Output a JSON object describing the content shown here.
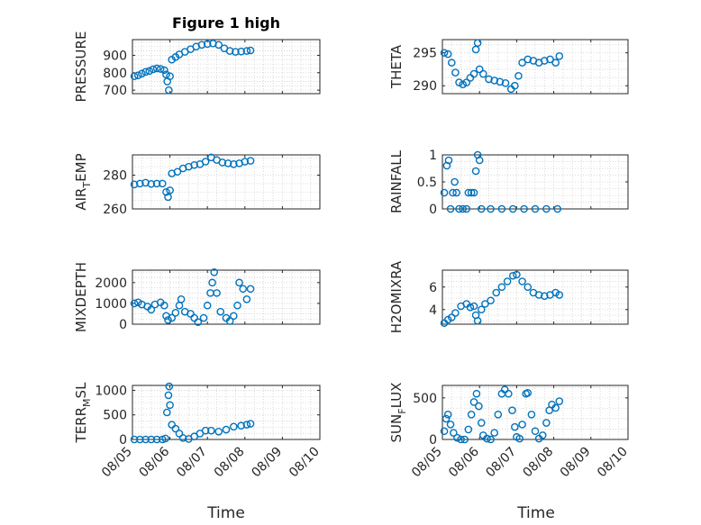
{
  "figure": {
    "title": "Figure 1 high",
    "xlabel": "Time"
  },
  "colors": {
    "marker": "#0072BD",
    "grid": "#d0d0d0",
    "axes": "#262626"
  },
  "chart_data": [
    {
      "type": "scatter",
      "name": "PRESSURE",
      "ylabel_main": "PRESSURE",
      "ylabel_sub": "",
      "xlim": [
        0,
        5
      ],
      "ylim": [
        680,
        990
      ],
      "yticks": [
        700,
        800,
        900
      ],
      "show_xticks": false,
      "title": "Figure 1 high",
      "points": [
        [
          0.05,
          780
        ],
        [
          0.15,
          785
        ],
        [
          0.25,
          795
        ],
        [
          0.35,
          805
        ],
        [
          0.45,
          810
        ],
        [
          0.55,
          820
        ],
        [
          0.65,
          825
        ],
        [
          0.75,
          822
        ],
        [
          0.85,
          815
        ],
        [
          0.9,
          790
        ],
        [
          0.93,
          750
        ],
        [
          0.97,
          700
        ],
        [
          1.0,
          780
        ],
        [
          1.05,
          875
        ],
        [
          1.15,
          890
        ],
        [
          1.25,
          905
        ],
        [
          1.4,
          920
        ],
        [
          1.55,
          935
        ],
        [
          1.7,
          950
        ],
        [
          1.85,
          960
        ],
        [
          2.0,
          965
        ],
        [
          2.15,
          968
        ],
        [
          2.3,
          960
        ],
        [
          2.45,
          940
        ],
        [
          2.6,
          925
        ],
        [
          2.75,
          920
        ],
        [
          2.9,
          922
        ],
        [
          3.05,
          925
        ],
        [
          3.15,
          928
        ]
      ]
    },
    {
      "type": "scatter",
      "name": "THETA",
      "ylabel_main": "THETA",
      "ylabel_sub": "",
      "xlim": [
        0,
        5
      ],
      "ylim": [
        288.8,
        297
      ],
      "yticks": [
        290,
        295
      ],
      "show_xticks": false,
      "points": [
        [
          0.05,
          295
        ],
        [
          0.15,
          294.8
        ],
        [
          0.25,
          293.5
        ],
        [
          0.35,
          292
        ],
        [
          0.45,
          290.5
        ],
        [
          0.55,
          290.2
        ],
        [
          0.65,
          290.5
        ],
        [
          0.75,
          291.2
        ],
        [
          0.85,
          291.8
        ],
        [
          0.9,
          295.5
        ],
        [
          0.95,
          296.5
        ],
        [
          1.0,
          292.5
        ],
        [
          1.1,
          291.8
        ],
        [
          1.25,
          291
        ],
        [
          1.4,
          290.8
        ],
        [
          1.55,
          290.6
        ],
        [
          1.7,
          290.4
        ],
        [
          1.85,
          289.5
        ],
        [
          1.95,
          290
        ],
        [
          2.05,
          291.5
        ],
        [
          2.15,
          293.5
        ],
        [
          2.3,
          294
        ],
        [
          2.45,
          293.8
        ],
        [
          2.6,
          293.5
        ],
        [
          2.75,
          293.8
        ],
        [
          2.9,
          294
        ],
        [
          3.05,
          293.5
        ],
        [
          3.15,
          294.5
        ]
      ]
    },
    {
      "type": "scatter",
      "name": "AIR_TEMP",
      "ylabel_main": "AIR",
      "ylabel_sub": "T",
      "ylabel_rest": "EMP",
      "xlim": [
        0,
        5
      ],
      "ylim": [
        260,
        292
      ],
      "yticks": [
        260,
        280
      ],
      "show_xticks": false,
      "points": [
        [
          0.05,
          274.5
        ],
        [
          0.2,
          275
        ],
        [
          0.35,
          275.5
        ],
        [
          0.5,
          274.8
        ],
        [
          0.65,
          275
        ],
        [
          0.8,
          275
        ],
        [
          0.9,
          270
        ],
        [
          0.95,
          267
        ],
        [
          1.0,
          271
        ],
        [
          1.05,
          281
        ],
        [
          1.2,
          282
        ],
        [
          1.35,
          284
        ],
        [
          1.5,
          285
        ],
        [
          1.65,
          286
        ],
        [
          1.8,
          286.5
        ],
        [
          1.95,
          288
        ],
        [
          2.1,
          290.5
        ],
        [
          2.25,
          289
        ],
        [
          2.4,
          287.5
        ],
        [
          2.55,
          287
        ],
        [
          2.7,
          286.5
        ],
        [
          2.85,
          287
        ],
        [
          3.0,
          288
        ],
        [
          3.15,
          288.5
        ]
      ]
    },
    {
      "type": "scatter",
      "name": "RAINFALL",
      "ylabel_main": "RAINFALL",
      "ylabel_sub": "",
      "xlim": [
        0,
        5
      ],
      "ylim": [
        0,
        1
      ],
      "yticks": [
        0,
        0.5,
        1
      ],
      "show_xticks": false,
      "points": [
        [
          0.05,
          0.3
        ],
        [
          0.12,
          0.8
        ],
        [
          0.17,
          0.9
        ],
        [
          0.22,
          0
        ],
        [
          0.28,
          0.3
        ],
        [
          0.33,
          0.5
        ],
        [
          0.38,
          0.3
        ],
        [
          0.45,
          0
        ],
        [
          0.55,
          0
        ],
        [
          0.65,
          0
        ],
        [
          0.7,
          0.3
        ],
        [
          0.78,
          0.3
        ],
        [
          0.85,
          0.3
        ],
        [
          0.9,
          0.7
        ],
        [
          0.95,
          1.0
        ],
        [
          1.0,
          0.9
        ],
        [
          1.05,
          0
        ],
        [
          1.3,
          0
        ],
        [
          1.6,
          0
        ],
        [
          1.9,
          0
        ],
        [
          2.2,
          0
        ],
        [
          2.5,
          0
        ],
        [
          2.8,
          0
        ],
        [
          3.1,
          0
        ]
      ]
    },
    {
      "type": "scatter",
      "name": "MIXDEPTH",
      "ylabel_main": "MIXDEPTH",
      "ylabel_sub": "",
      "xlim": [
        0,
        5
      ],
      "ylim": [
        0,
        2600
      ],
      "yticks": [
        0,
        1000,
        2000
      ],
      "show_xticks": false,
      "points": [
        [
          0.05,
          1000
        ],
        [
          0.15,
          1050
        ],
        [
          0.25,
          950
        ],
        [
          0.4,
          850
        ],
        [
          0.5,
          700
        ],
        [
          0.6,
          950
        ],
        [
          0.75,
          1050
        ],
        [
          0.85,
          900
        ],
        [
          0.9,
          400
        ],
        [
          0.95,
          200
        ],
        [
          1.05,
          300
        ],
        [
          1.15,
          550
        ],
        [
          1.25,
          900
        ],
        [
          1.3,
          1200
        ],
        [
          1.4,
          600
        ],
        [
          1.55,
          500
        ],
        [
          1.65,
          300
        ],
        [
          1.75,
          100
        ],
        [
          1.9,
          300
        ],
        [
          2.0,
          900
        ],
        [
          2.08,
          1500
        ],
        [
          2.13,
          2000
        ],
        [
          2.18,
          2500
        ],
        [
          2.25,
          1500
        ],
        [
          2.35,
          600
        ],
        [
          2.5,
          300
        ],
        [
          2.6,
          150
        ],
        [
          2.7,
          400
        ],
        [
          2.8,
          900
        ],
        [
          2.85,
          2000
        ],
        [
          2.95,
          1700
        ],
        [
          3.05,
          1200
        ],
        [
          3.15,
          1700
        ]
      ]
    },
    {
      "type": "scatter",
      "name": "H2OMIXRA",
      "ylabel_main": "H2OMIXRA",
      "ylabel_sub": "",
      "xlim": [
        0,
        5
      ],
      "ylim": [
        2.7,
        7.5
      ],
      "yticks": [
        4,
        6
      ],
      "show_xticks": false,
      "points": [
        [
          0.05,
          2.8
        ],
        [
          0.15,
          3.1
        ],
        [
          0.25,
          3.3
        ],
        [
          0.35,
          3.7
        ],
        [
          0.5,
          4.3
        ],
        [
          0.65,
          4.5
        ],
        [
          0.75,
          4.2
        ],
        [
          0.85,
          4.3
        ],
        [
          0.9,
          3.5
        ],
        [
          0.95,
          3.0
        ],
        [
          1.05,
          4.0
        ],
        [
          1.15,
          4.5
        ],
        [
          1.3,
          4.8
        ],
        [
          1.45,
          5.5
        ],
        [
          1.6,
          6.0
        ],
        [
          1.75,
          6.5
        ],
        [
          1.9,
          7.0
        ],
        [
          2.0,
          7.1
        ],
        [
          2.15,
          6.5
        ],
        [
          2.3,
          6.0
        ],
        [
          2.45,
          5.5
        ],
        [
          2.6,
          5.3
        ],
        [
          2.75,
          5.2
        ],
        [
          2.9,
          5.3
        ],
        [
          3.05,
          5.5
        ],
        [
          3.15,
          5.3
        ]
      ]
    },
    {
      "type": "scatter",
      "name": "TERR_MSL",
      "ylabel_main": "TERR",
      "ylabel_sub": "M",
      "ylabel_rest": "SL",
      "xlim": [
        0,
        5
      ],
      "ylim": [
        0,
        1100
      ],
      "yticks": [
        0,
        500,
        1000
      ],
      "show_xticks": true,
      "xtick_labels": [
        "08/05",
        "08/06",
        "08/07",
        "08/08",
        "08/09",
        "08/10"
      ],
      "points": [
        [
          0.05,
          0
        ],
        [
          0.2,
          0
        ],
        [
          0.35,
          0
        ],
        [
          0.5,
          0
        ],
        [
          0.65,
          0
        ],
        [
          0.8,
          0
        ],
        [
          0.88,
          20
        ],
        [
          0.92,
          550
        ],
        [
          0.96,
          900
        ],
        [
          0.98,
          1080
        ],
        [
          1.0,
          700
        ],
        [
          1.05,
          300
        ],
        [
          1.15,
          220
        ],
        [
          1.25,
          120
        ],
        [
          1.35,
          30
        ],
        [
          1.5,
          10
        ],
        [
          1.65,
          60
        ],
        [
          1.8,
          120
        ],
        [
          1.95,
          180
        ],
        [
          2.1,
          180
        ],
        [
          2.3,
          160
        ],
        [
          2.5,
          200
        ],
        [
          2.7,
          260
        ],
        [
          2.9,
          280
        ],
        [
          3.05,
          300
        ],
        [
          3.15,
          320
        ]
      ]
    },
    {
      "type": "scatter",
      "name": "SUN_FLUX",
      "ylabel_main": "SUN",
      "ylabel_sub": "F",
      "ylabel_rest": "LUX",
      "xlim": [
        0,
        5
      ],
      "ylim": [
        0,
        650
      ],
      "yticks": [
        0,
        500
      ],
      "show_xticks": true,
      "xtick_labels": [
        "08/05",
        "08/06",
        "08/07",
        "08/08",
        "08/09",
        "08/10"
      ],
      "points": [
        [
          0.05,
          100
        ],
        [
          0.1,
          250
        ],
        [
          0.15,
          300
        ],
        [
          0.22,
          180
        ],
        [
          0.3,
          80
        ],
        [
          0.4,
          20
        ],
        [
          0.5,
          0
        ],
        [
          0.6,
          0
        ],
        [
          0.7,
          120
        ],
        [
          0.78,
          300
        ],
        [
          0.85,
          450
        ],
        [
          0.92,
          550
        ],
        [
          0.98,
          400
        ],
        [
          1.05,
          200
        ],
        [
          1.1,
          50
        ],
        [
          1.2,
          10
        ],
        [
          1.3,
          0
        ],
        [
          1.4,
          80
        ],
        [
          1.5,
          300
        ],
        [
          1.6,
          550
        ],
        [
          1.68,
          600
        ],
        [
          1.78,
          550
        ],
        [
          1.88,
          350
        ],
        [
          1.95,
          150
        ],
        [
          2.0,
          30
        ],
        [
          2.08,
          10
        ],
        [
          2.15,
          180
        ],
        [
          2.25,
          550
        ],
        [
          2.3,
          560
        ],
        [
          2.4,
          300
        ],
        [
          2.5,
          100
        ],
        [
          2.6,
          10
        ],
        [
          2.7,
          50
        ],
        [
          2.8,
          200
        ],
        [
          2.88,
          350
        ],
        [
          2.95,
          420
        ],
        [
          3.05,
          380
        ],
        [
          3.15,
          460
        ]
      ]
    }
  ]
}
